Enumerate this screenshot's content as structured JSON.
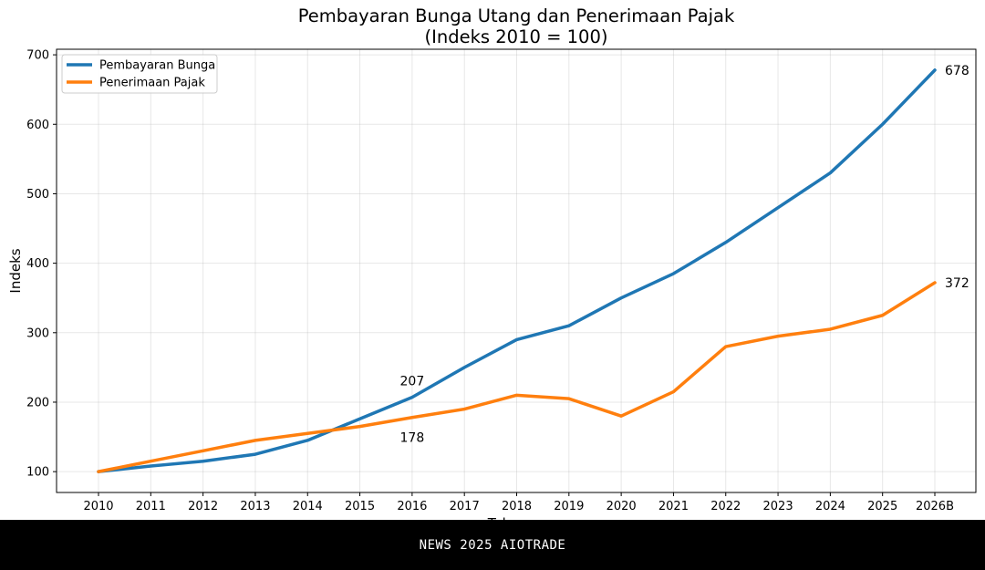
{
  "footer": {
    "text": "NEWS 2025 AIOTRADE"
  },
  "chart_data": {
    "type": "line",
    "title_line1": "Pembayaran Bunga Utang dan Penerimaan Pajak",
    "title_line2": "(Indeks 2010 = 100)",
    "xlabel": "Tahun",
    "ylabel": "Indeks",
    "categories": [
      "2010",
      "2011",
      "2012",
      "2013",
      "2014",
      "2015",
      "2016",
      "2017",
      "2018",
      "2019",
      "2020",
      "2021",
      "2022",
      "2023",
      "2024",
      "2025",
      "2026B"
    ],
    "ylim": [
      70,
      708
    ],
    "yticks": [
      100,
      200,
      300,
      400,
      500,
      600,
      700
    ],
    "grid": true,
    "legend_position": "top-left",
    "series": [
      {
        "name": "Pembayaran Bunga",
        "color": "#1f77b4",
        "values": [
          100,
          108,
          115,
          125,
          145,
          176,
          207,
          250,
          290,
          310,
          350,
          385,
          430,
          480,
          530,
          600,
          678
        ]
      },
      {
        "name": "Penerimaan Pajak",
        "color": "#ff7f0e",
        "values": [
          100,
          115,
          130,
          145,
          155,
          165,
          178,
          190,
          210,
          205,
          180,
          215,
          280,
          295,
          305,
          325,
          372
        ]
      }
    ],
    "annotations": [
      {
        "text": "207",
        "series": 0,
        "category": "2016",
        "placement": "above"
      },
      {
        "text": "178",
        "series": 1,
        "category": "2016",
        "placement": "below"
      },
      {
        "text": "678",
        "series": 0,
        "category": "2026B",
        "placement": "right"
      },
      {
        "text": "372",
        "series": 1,
        "category": "2026B",
        "placement": "right"
      }
    ]
  }
}
